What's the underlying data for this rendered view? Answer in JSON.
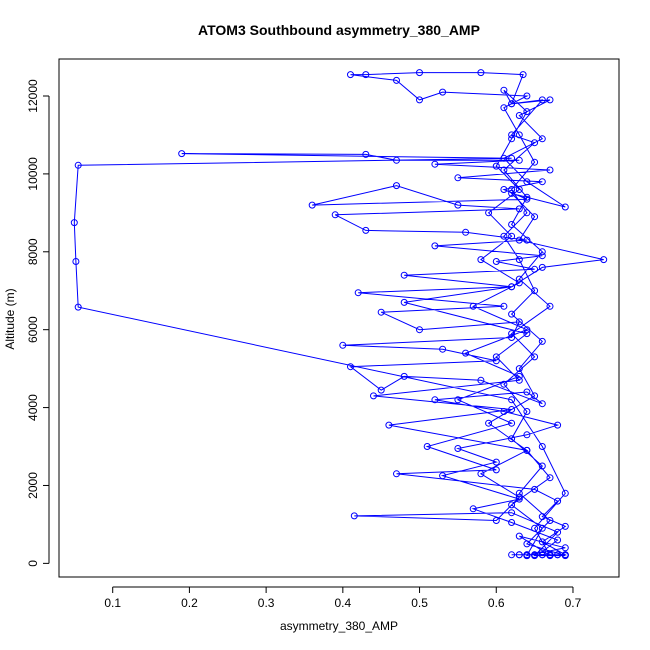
{
  "chart_data": {
    "type": "line",
    "title": "ATOM3 Southbound asymmetry_380_AMP",
    "xlabel": "asymmetry_380_AMP",
    "ylabel": "Altitude (m)",
    "xlim": [
      0.03,
      0.76
    ],
    "ylim": [
      -350,
      12950
    ],
    "x_ticks": [
      {
        "value": 0.1,
        "label": "0.1"
      },
      {
        "value": 0.2,
        "label": "0.2"
      },
      {
        "value": 0.3,
        "label": "0.3"
      },
      {
        "value": 0.4,
        "label": "0.4"
      },
      {
        "value": 0.5,
        "label": "0.5"
      },
      {
        "value": 0.6,
        "label": "0.6"
      },
      {
        "value": 0.7,
        "label": "0.7"
      }
    ],
    "y_ticks": [
      {
        "value": 0,
        "label": "0"
      },
      {
        "value": 2000,
        "label": "2000"
      },
      {
        "value": 4000,
        "label": "4000"
      },
      {
        "value": 6000,
        "label": "6000"
      },
      {
        "value": 8000,
        "label": "8000"
      },
      {
        "value": 10000,
        "label": "10000"
      },
      {
        "value": 12000,
        "label": "12000"
      }
    ],
    "grid": false,
    "color": "#0000ff",
    "marker": "open-circle",
    "series": [
      {
        "name": "",
        "points": [
          [
            0.64,
            200
          ],
          [
            0.66,
            300
          ],
          [
            0.68,
            600
          ],
          [
            0.62,
            1050
          ],
          [
            0.57,
            1400
          ],
          [
            0.63,
            1650
          ],
          [
            0.53,
            2250
          ],
          [
            0.6,
            2600
          ],
          [
            0.55,
            2950
          ],
          [
            0.64,
            3300
          ],
          [
            0.68,
            3550
          ],
          [
            0.61,
            3900
          ],
          [
            0.52,
            4200
          ],
          [
            0.64,
            4400
          ],
          [
            0.66,
            4100
          ],
          [
            0.58,
            4700
          ],
          [
            0.48,
            4800
          ],
          [
            0.45,
            4450
          ],
          [
            0.41,
            5050
          ],
          [
            0.6,
            5200
          ],
          [
            0.53,
            5500
          ],
          [
            0.4,
            5600
          ],
          [
            0.62,
            5800
          ],
          [
            0.63,
            6200
          ],
          [
            0.5,
            6000
          ],
          [
            0.45,
            6450
          ],
          [
            0.61,
            6600
          ],
          [
            0.42,
            6950
          ],
          [
            0.62,
            7100
          ],
          [
            0.48,
            7400
          ],
          [
            0.65,
            7550
          ],
          [
            0.6,
            7750
          ],
          [
            0.66,
            7900
          ],
          [
            0.52,
            8150
          ],
          [
            0.64,
            8300
          ],
          [
            0.56,
            8500
          ],
          [
            0.43,
            8550
          ],
          [
            0.39,
            8950
          ],
          [
            0.63,
            9100
          ],
          [
            0.55,
            9200
          ],
          [
            0.47,
            9700
          ],
          [
            0.36,
            9200
          ],
          [
            0.64,
            9350
          ],
          [
            0.61,
            9600
          ],
          [
            0.66,
            9800
          ],
          [
            0.55,
            9900
          ],
          [
            0.67,
            10100
          ],
          [
            0.52,
            10250
          ],
          [
            0.63,
            10350
          ],
          [
            0.47,
            10350
          ],
          [
            0.43,
            10500
          ],
          [
            0.19,
            10520
          ],
          [
            0.62,
            10400
          ],
          [
            0.055,
            10220
          ],
          [
            0.05,
            8750
          ],
          [
            0.052,
            7750
          ],
          [
            0.055,
            6580
          ],
          [
            0.62,
            4200
          ],
          [
            0.66,
            3000
          ],
          [
            0.69,
            1800
          ],
          [
            0.65,
            900
          ],
          [
            0.67,
            200
          ],
          [
            0.63,
            700
          ],
          [
            0.69,
            400
          ],
          [
            0.64,
            200
          ],
          [
            0.66,
            900
          ],
          [
            0.62,
            1500
          ],
          [
            0.67,
            2200
          ],
          [
            0.64,
            2900
          ],
          [
            0.59,
            3600
          ],
          [
            0.65,
            4300
          ],
          [
            0.63,
            5000
          ],
          [
            0.66,
            5700
          ],
          [
            0.62,
            6400
          ],
          [
            0.65,
            7000
          ],
          [
            0.63,
            7800
          ],
          [
            0.61,
            8400
          ],
          [
            0.64,
            9000
          ],
          [
            0.62,
            9600
          ],
          [
            0.65,
            10300
          ],
          [
            0.63,
            11000
          ],
          [
            0.61,
            11700
          ],
          [
            0.64,
            12000
          ],
          [
            0.53,
            12100
          ],
          [
            0.5,
            11900
          ],
          [
            0.47,
            12400
          ],
          [
            0.41,
            12550
          ],
          [
            0.43,
            12550
          ],
          [
            0.5,
            12600
          ],
          [
            0.58,
            12600
          ],
          [
            0.635,
            12550
          ],
          [
            0.62,
            11800
          ],
          [
            0.66,
            11900
          ],
          [
            0.62,
            11000
          ],
          [
            0.65,
            10800
          ],
          [
            0.61,
            10100
          ],
          [
            0.64,
            9400
          ],
          [
            0.62,
            8700
          ],
          [
            0.66,
            8000
          ],
          [
            0.63,
            7300
          ],
          [
            0.67,
            6600
          ],
          [
            0.62,
            5900
          ],
          [
            0.65,
            5300
          ],
          [
            0.61,
            4600
          ],
          [
            0.64,
            3900
          ],
          [
            0.62,
            3200
          ],
          [
            0.66,
            2500
          ],
          [
            0.63,
            1800
          ],
          [
            0.67,
            1100
          ],
          [
            0.64,
            500
          ],
          [
            0.69,
            200
          ],
          [
            0.65,
            200
          ],
          [
            0.68,
            800
          ],
          [
            0.62,
            1300
          ],
          [
            0.415,
            1220
          ],
          [
            0.6,
            1100
          ],
          [
            0.63,
            1700
          ],
          [
            0.58,
            2300
          ],
          [
            0.64,
            2900
          ],
          [
            0.46,
            3550
          ],
          [
            0.62,
            3950
          ],
          [
            0.44,
            4300
          ],
          [
            0.63,
            4700
          ],
          [
            0.6,
            5300
          ],
          [
            0.64,
            5900
          ],
          [
            0.48,
            6700
          ],
          [
            0.62,
            7100
          ],
          [
            0.66,
            7600
          ],
          [
            0.74,
            7800
          ],
          [
            0.63,
            8300
          ],
          [
            0.65,
            8900
          ],
          [
            0.62,
            9500
          ],
          [
            0.69,
            9150
          ],
          [
            0.64,
            9800
          ],
          [
            0.61,
            10400
          ],
          [
            0.66,
            10900
          ],
          [
            0.63,
            11500
          ],
          [
            0.67,
            11900
          ],
          [
            0.62,
            11800
          ],
          [
            0.61,
            12150
          ],
          [
            0.64,
            11600
          ],
          [
            0.62,
            10900
          ],
          [
            0.6,
            10200
          ],
          [
            0.63,
            9600
          ],
          [
            0.59,
            9000
          ],
          [
            0.62,
            8400
          ],
          [
            0.58,
            7800
          ],
          [
            0.63,
            7200
          ],
          [
            0.57,
            6600
          ],
          [
            0.64,
            6000
          ],
          [
            0.56,
            5400
          ],
          [
            0.63,
            4800
          ],
          [
            0.55,
            4200
          ],
          [
            0.62,
            3600
          ],
          [
            0.51,
            3000
          ],
          [
            0.6,
            2400
          ],
          [
            0.47,
            2300
          ],
          [
            0.65,
            1900
          ],
          [
            0.68,
            1600
          ],
          [
            0.66,
            1200
          ],
          [
            0.69,
            950
          ],
          [
            0.66,
            550
          ],
          [
            0.69,
            220
          ],
          [
            0.67,
            220
          ],
          [
            0.64,
            220
          ],
          [
            0.68,
            220
          ],
          [
            0.65,
            220
          ],
          [
            0.63,
            220
          ],
          [
            0.66,
            220
          ],
          [
            0.69,
            220
          ],
          [
            0.62,
            220
          ],
          [
            0.67,
            220
          ],
          [
            0.64,
            220
          ],
          [
            0.68,
            220
          ],
          [
            0.65,
            220
          ],
          [
            0.63,
            220
          ],
          [
            0.66,
            220
          ],
          [
            0.69,
            220
          ]
        ]
      }
    ]
  }
}
